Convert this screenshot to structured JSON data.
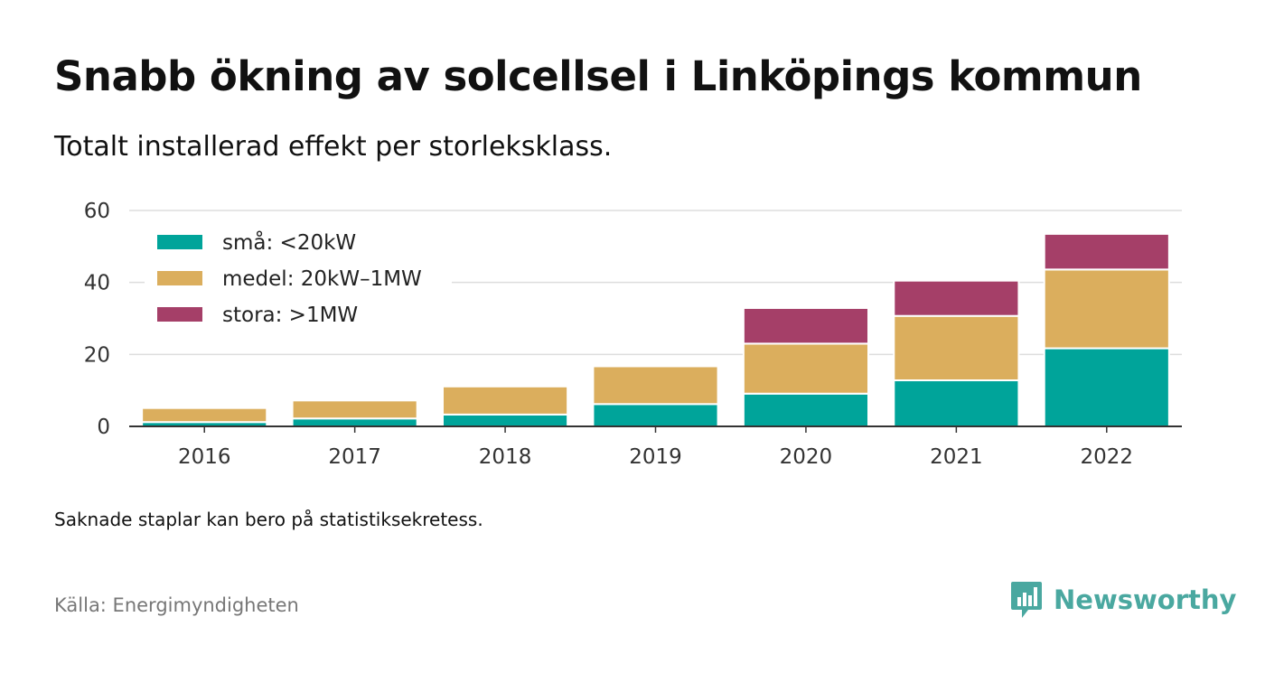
{
  "title": "Snabb ökning av solcellsel i Linköpings kommun",
  "subtitle": "Totalt installerad effekt per storleksklass.",
  "note": "Saknade staplar kan bero på statistiksekretess.",
  "source": "Källa: Energimyndigheten",
  "brand": {
    "name": "Newsworthy",
    "icon": "bar-chart-speech-bubble-icon",
    "color": "#4aa8a0"
  },
  "chart_data": {
    "type": "bar",
    "stacked": true,
    "categories": [
      "2016",
      "2017",
      "2018",
      "2019",
      "2020",
      "2021",
      "2022"
    ],
    "series": [
      {
        "name": "små: <20kW",
        "color": "#00a49a",
        "values": [
          1.2,
          2.2,
          3.3,
          6.2,
          9.1,
          12.8,
          21.7
        ]
      },
      {
        "name": "medel: 20kW–1MW",
        "color": "#dbae5d",
        "values": [
          3.9,
          5.0,
          7.8,
          10.5,
          13.9,
          17.9,
          21.9
        ]
      },
      {
        "name": "stora: >1MW",
        "color": "#a53f68",
        "values": [
          0,
          0,
          0,
          0,
          9.9,
          9.8,
          9.9
        ]
      }
    ],
    "yticks": [
      0,
      20,
      40,
      60
    ],
    "ylim": [
      0,
      60
    ],
    "grid": true,
    "legend": "top-left"
  }
}
